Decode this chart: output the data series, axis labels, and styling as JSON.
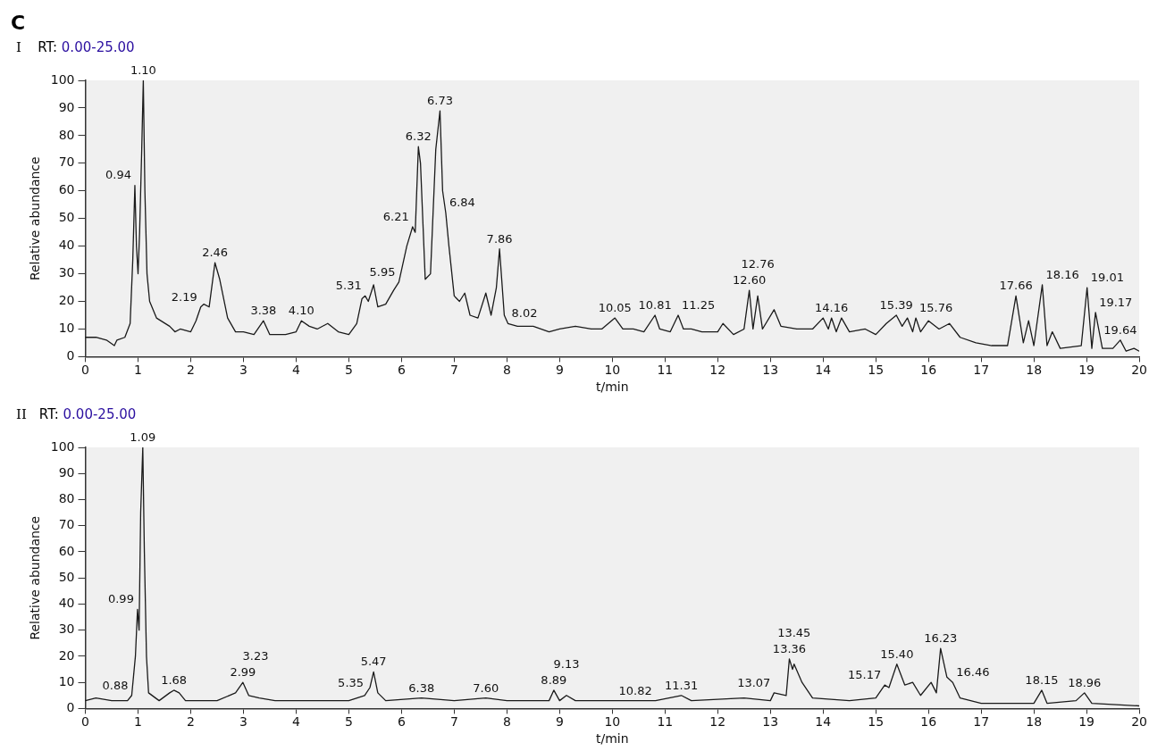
{
  "chart_data": [
    {
      "type": "line",
      "title": "RT: 0.00-25.00",
      "xlabel": "t/min",
      "ylabel": "Relative abundance",
      "annotations": [
        "C",
        "I",
        {
          "text": "0.94",
          "x": 0.94,
          "y": 62
        },
        {
          "text": "1.10",
          "x": 1.1,
          "y": 100
        },
        {
          "text": "2.19",
          "x": 2.19,
          "y": 18
        },
        {
          "text": "2.46",
          "x": 2.46,
          "y": 34
        },
        {
          "text": "3.38",
          "x": 3.38,
          "y": 13
        },
        {
          "text": "4.10",
          "x": 4.1,
          "y": 13
        },
        {
          "text": "5.31",
          "x": 5.31,
          "y": 22
        },
        {
          "text": "5.95",
          "x": 5.95,
          "y": 27
        },
        {
          "text": "6.21",
          "x": 6.21,
          "y": 47
        },
        {
          "text": "6.32",
          "x": 6.32,
          "y": 76
        },
        {
          "text": "6.73",
          "x": 6.73,
          "y": 89
        },
        {
          "text": "6.84",
          "x": 6.84,
          "y": 52
        },
        {
          "text": "7.86",
          "x": 7.86,
          "y": 39
        },
        {
          "text": "8.02",
          "x": 8.02,
          "y": 12
        },
        {
          "text": "10.05",
          "x": 10.05,
          "y": 14
        },
        {
          "text": "10.81",
          "x": 10.81,
          "y": 15
        },
        {
          "text": "11.25",
          "x": 11.25,
          "y": 15
        },
        {
          "text": "12.60",
          "x": 12.6,
          "y": 24
        },
        {
          "text": "12.76",
          "x": 12.76,
          "y": 22
        },
        {
          "text": "14.16",
          "x": 14.16,
          "y": 14
        },
        {
          "text": "15.39",
          "x": 15.39,
          "y": 15
        },
        {
          "text": "15.76",
          "x": 15.76,
          "y": 14
        },
        {
          "text": "17.66",
          "x": 17.66,
          "y": 22
        },
        {
          "text": "18.16",
          "x": 18.16,
          "y": 26
        },
        {
          "text": "19.01",
          "x": 19.01,
          "y": 25
        },
        {
          "text": "19.17",
          "x": 19.17,
          "y": 16
        },
        {
          "text": "19.64",
          "x": 19.64,
          "y": 6
        }
      ],
      "xlim": [
        0,
        20
      ],
      "xticks": [
        0,
        1,
        2,
        3,
        4,
        5,
        6,
        7,
        8,
        9,
        10,
        11,
        12,
        13,
        14,
        15,
        16,
        17,
        18,
        19,
        20
      ],
      "ylim": [
        0,
        100
      ],
      "yticks": [
        0,
        10,
        20,
        30,
        40,
        50,
        60,
        70,
        80,
        90,
        100
      ],
      "grid": false,
      "legend": false,
      "marker": "none",
      "series": [
        {
          "color": "#1a1a1a",
          "x": [
            0,
            0.2,
            0.4,
            0.55,
            0.6,
            0.75,
            0.85,
            0.9,
            0.94,
            0.97,
            1.0,
            1.03,
            1.07,
            1.1,
            1.13,
            1.17,
            1.22,
            1.35,
            1.6,
            1.7,
            1.8,
            2.0,
            2.1,
            2.19,
            2.25,
            2.35,
            2.46,
            2.55,
            2.7,
            2.85,
            3.0,
            3.2,
            3.38,
            3.5,
            3.8,
            4.0,
            4.1,
            4.25,
            4.4,
            4.6,
            4.8,
            5.0,
            5.15,
            5.25,
            5.31,
            5.37,
            5.47,
            5.55,
            5.7,
            5.85,
            5.95,
            6.1,
            6.21,
            6.26,
            6.32,
            6.36,
            6.45,
            6.55,
            6.65,
            6.73,
            6.78,
            6.84,
            6.9,
            7.0,
            7.1,
            7.2,
            7.3,
            7.45,
            7.6,
            7.7,
            7.8,
            7.86,
            7.95,
            8.02,
            8.2,
            8.5,
            8.8,
            9.0,
            9.3,
            9.6,
            9.8,
            10.05,
            10.2,
            10.4,
            10.6,
            10.81,
            10.9,
            11.1,
            11.25,
            11.35,
            11.5,
            11.7,
            12.0,
            12.1,
            12.3,
            12.5,
            12.6,
            12.67,
            12.76,
            12.85,
            13.07,
            13.2,
            13.5,
            13.8,
            14.0,
            14.1,
            14.16,
            14.25,
            14.35,
            14.5,
            14.8,
            15.0,
            15.2,
            15.39,
            15.5,
            15.6,
            15.7,
            15.76,
            15.85,
            16.0,
            16.2,
            16.4,
            16.6,
            16.9,
            17.2,
            17.5,
            17.66,
            17.8,
            17.9,
            18.0,
            18.16,
            18.25,
            18.35,
            18.5,
            18.9,
            19.01,
            19.1,
            19.17,
            19.3,
            19.5,
            19.64,
            19.75,
            19.9,
            20
          ],
          "values": [
            7,
            7,
            6,
            4,
            6,
            7,
            12,
            35,
            62,
            40,
            30,
            45,
            75,
            100,
            60,
            30,
            20,
            14,
            11,
            9,
            10,
            9,
            13,
            18,
            19,
            18,
            34,
            28,
            14,
            9,
            9,
            8,
            13,
            8,
            8,
            9,
            13,
            11,
            10,
            12,
            9,
            8,
            12,
            21,
            22,
            20,
            26,
            18,
            19,
            24,
            27,
            40,
            47,
            45,
            76,
            70,
            28,
            30,
            75,
            89,
            60,
            52,
            40,
            22,
            20,
            23,
            15,
            14,
            23,
            15,
            25,
            39,
            15,
            12,
            11,
            11,
            9,
            10,
            11,
            10,
            10,
            14,
            10,
            10,
            9,
            15,
            10,
            9,
            15,
            10,
            10,
            9,
            9,
            12,
            8,
            10,
            24,
            10,
            22,
            10,
            17,
            11,
            10,
            10,
            14,
            10,
            14,
            9,
            14,
            9,
            10,
            8,
            12,
            15,
            11,
            14,
            9,
            14,
            9,
            13,
            10,
            12,
            7,
            5,
            4,
            4,
            22,
            5,
            13,
            4,
            26,
            4,
            9,
            3,
            4,
            25,
            3,
            16,
            3,
            3,
            6,
            2,
            3,
            2
          ]
        }
      ]
    },
    {
      "type": "line",
      "title": "RT: 0.00-25.00",
      "xlabel": "t/min",
      "ylabel": "Relative abundance",
      "annotations": [
        "II",
        {
          "text": "0.88",
          "x": 0.88,
          "y": 5
        },
        {
          "text": "0.99",
          "x": 0.99,
          "y": 38
        },
        {
          "text": "1.09",
          "x": 1.09,
          "y": 100
        },
        {
          "text": "1.68",
          "x": 1.68,
          "y": 7
        },
        {
          "text": "2.99",
          "x": 2.99,
          "y": 10
        },
        {
          "text": "3.23",
          "x": 3.23,
          "y": 5
        },
        {
          "text": "5.35",
          "x": 5.35,
          "y": 6
        },
        {
          "text": "5.47",
          "x": 5.47,
          "y": 14
        },
        {
          "text": "6.38",
          "x": 6.38,
          "y": 4
        },
        {
          "text": "7.60",
          "x": 7.6,
          "y": 4
        },
        {
          "text": "8.89",
          "x": 8.89,
          "y": 7
        },
        {
          "text": "9.13",
          "x": 9.13,
          "y": 5
        },
        {
          "text": "10.82",
          "x": 10.82,
          "y": 3
        },
        {
          "text": "11.31",
          "x": 11.31,
          "y": 5
        },
        {
          "text": "13.07",
          "x": 13.07,
          "y": 6
        },
        {
          "text": "13.36",
          "x": 13.36,
          "y": 19
        },
        {
          "text": "13.45",
          "x": 13.45,
          "y": 17
        },
        {
          "text": "15.17",
          "x": 15.17,
          "y": 9
        },
        {
          "text": "15.40",
          "x": 15.4,
          "y": 17
        },
        {
          "text": "16.23",
          "x": 16.23,
          "y": 23
        },
        {
          "text": "16.46",
          "x": 16.46,
          "y": 10
        },
        {
          "text": "18.15",
          "x": 18.15,
          "y": 7
        },
        {
          "text": "18.96",
          "x": 18.96,
          "y": 6
        }
      ],
      "xlim": [
        0,
        20
      ],
      "xticks": [
        0,
        1,
        2,
        3,
        4,
        5,
        6,
        7,
        8,
        9,
        10,
        11,
        12,
        13,
        14,
        15,
        16,
        17,
        18,
        19,
        20
      ],
      "ylim": [
        0,
        100
      ],
      "yticks": [
        0,
        10,
        20,
        30,
        40,
        50,
        60,
        70,
        80,
        90,
        100
      ],
      "grid": false,
      "legend": false,
      "marker": "none",
      "series": [
        {
          "color": "#1a1a1a",
          "x": [
            0,
            0.2,
            0.5,
            0.8,
            0.88,
            0.95,
            0.99,
            1.02,
            1.05,
            1.09,
            1.12,
            1.16,
            1.2,
            1.4,
            1.6,
            1.68,
            1.78,
            1.9,
            2.5,
            2.85,
            2.99,
            3.1,
            3.3,
            3.6,
            4.0,
            5.0,
            5.3,
            5.4,
            5.47,
            5.55,
            5.7,
            6.38,
            7.0,
            7.6,
            8.0,
            8.8,
            8.89,
            9.0,
            9.13,
            9.3,
            10.0,
            10.82,
            11.31,
            11.5,
            12.5,
            13.0,
            13.07,
            13.3,
            13.36,
            13.42,
            13.45,
            13.6,
            13.8,
            14.5,
            15.0,
            15.17,
            15.25,
            15.4,
            15.55,
            15.7,
            15.85,
            16.05,
            16.15,
            16.23,
            16.35,
            16.46,
            16.6,
            17.0,
            18.0,
            18.15,
            18.25,
            18.8,
            18.96,
            19.1,
            20
          ],
          "values": [
            3,
            4,
            3,
            3,
            5,
            20,
            38,
            30,
            75,
            100,
            60,
            20,
            6,
            3,
            6,
            7,
            6,
            3,
            3,
            6,
            10,
            5,
            4,
            3,
            3,
            3,
            5,
            8,
            14,
            6,
            3,
            4,
            3,
            4,
            3,
            3,
            7,
            3,
            5,
            3,
            3,
            3,
            5,
            3,
            4,
            3,
            6,
            5,
            19,
            15,
            17,
            10,
            4,
            3,
            4,
            9,
            8,
            17,
            9,
            10,
            5,
            10,
            6,
            23,
            12,
            10,
            4,
            2,
            2,
            7,
            2,
            3,
            6,
            2,
            1
          ]
        }
      ]
    }
  ]
}
